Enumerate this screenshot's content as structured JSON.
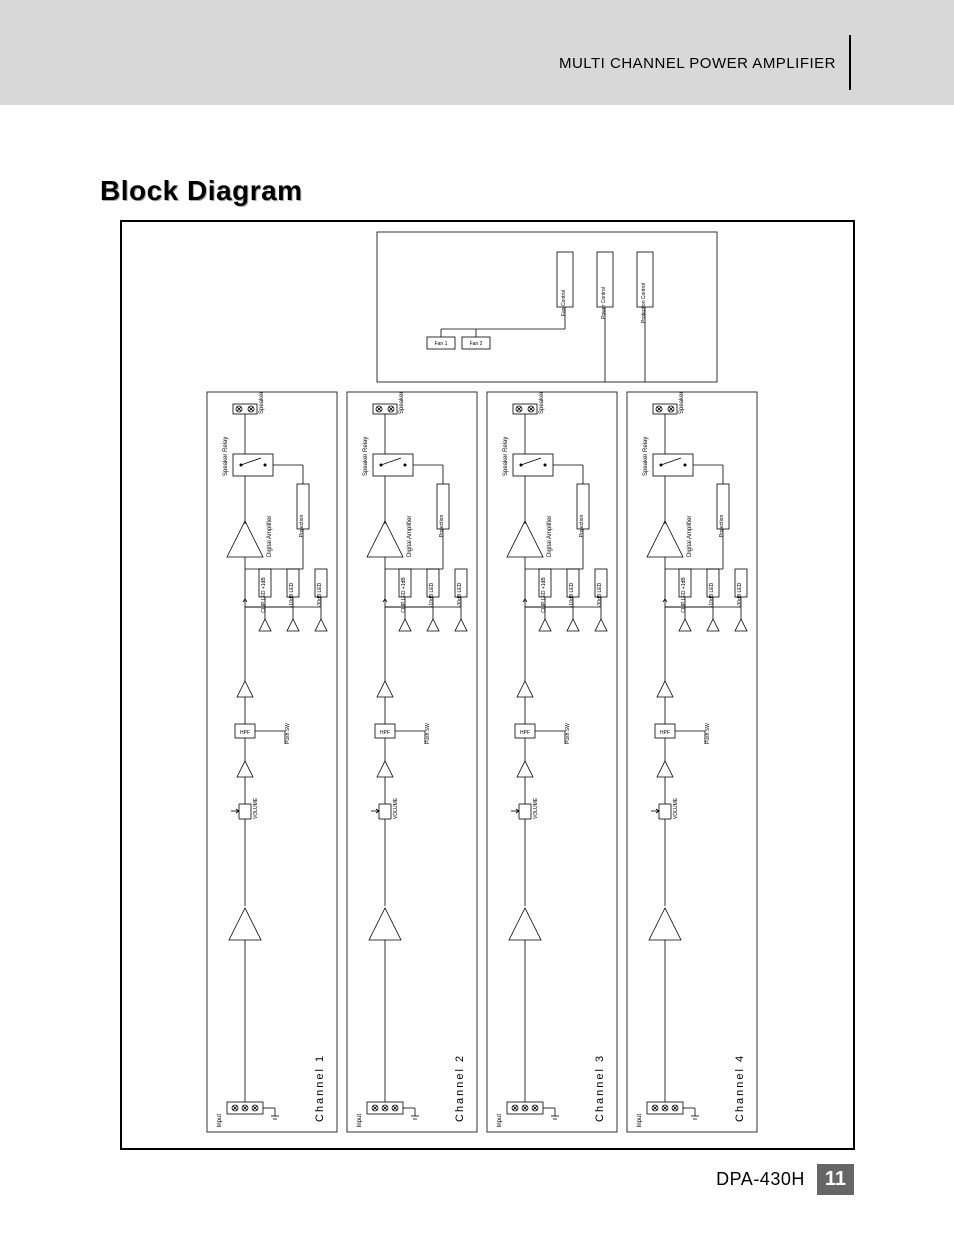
{
  "header": {
    "subtitle": "MULTI CHANNEL POWER AMPLIFIER"
  },
  "title": "Block Diagram",
  "footer": {
    "model": "DPA-430H",
    "page": "11"
  },
  "diagram": {
    "type": "block-diagram",
    "frame": {
      "stroke": "#000000",
      "stroke_width": 2,
      "fill": "#ffffff"
    },
    "block_stroke": "#000000",
    "block_stroke_width": 0.8,
    "line_stroke": "#000000",
    "line_stroke_width": 0.8,
    "text_color": "#000000",
    "channel_labels": [
      "Channel 1",
      "Channel 2",
      "Channel 3",
      "Channel 4"
    ],
    "channel": {
      "input_label": "Input",
      "volume_label": "VOLUME",
      "hpf_label": "HPF",
      "push_sw_label": "Push SW",
      "led_labels": [
        "CLIP LED +1dB",
        "-10dB LED",
        "-30dB LED"
      ],
      "amp_label": "Digital Amplifier",
      "protection_label": "Protection",
      "relay_label": "Speaker Relay",
      "speaker_label": "Speaker"
    },
    "control": {
      "fan1": "Fan 1",
      "fan2": "Fan 2",
      "fan_control": "Fan Control",
      "power_control": "Power Control",
      "protection_control": "Protection Control"
    }
  }
}
